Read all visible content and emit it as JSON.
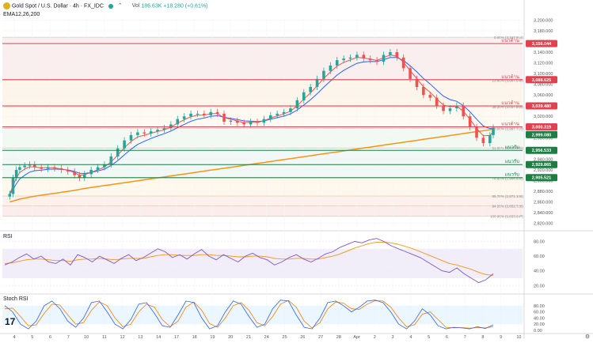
{
  "header": {
    "symbol_title": "Gold Spot / U.S. Dollar · 4h · FX_IDC",
    "volume_label": "Vol",
    "volume_value": "186.63K",
    "change_text": "+18.280 (+0.61%)",
    "indicator_label": "EMA12,26,200"
  },
  "colors": {
    "up": "#26a69a",
    "down": "#ef5350",
    "ema12": "#ef5350",
    "ema26": "#2962ff",
    "ema200": "#f7931a",
    "resistance": "#e0434f",
    "support": "#1e7d43",
    "rsi": "#7e57c2",
    "stoch_k": "#2962ff",
    "stoch_d": "#f57c00"
  },
  "chart_data": [
    {
      "type": "candlestick",
      "title": "Gold Spot / U.S. Dollar · 4h · FX_IDC",
      "x_tick_labels": [
        "4",
        "5",
        "6",
        "7",
        "10",
        "11",
        "12",
        "13",
        "14",
        "17",
        "18",
        "19",
        "20",
        "21",
        "24",
        "25",
        "26",
        "27",
        "28",
        "Apr",
        "2",
        "3",
        "4",
        "5",
        "6",
        "7",
        "8",
        "9",
        "10"
      ],
      "y_tick_labels": [
        "3,200.000",
        "3,180.000",
        "3,160.000",
        "3,140.000",
        "3,120.000",
        "3,100.000",
        "3,080.000",
        "3,060.000",
        "3,040.000",
        "3,020.000",
        "3,000.000",
        "2,980.000",
        "2,960.000",
        "2,940.000",
        "2,920.000",
        "2,900.000",
        "2,880.000",
        "2,860.000",
        "2,840.000",
        "2,820.000"
      ],
      "ylim": [
        2815,
        3205
      ],
      "approx_close_path": [
        [
          2870,
          2860
        ],
        [
          3,
          2875
        ],
        [
          5,
          2905
        ],
        [
          7,
          2920
        ],
        [
          9,
          2925
        ],
        [
          12,
          2928
        ],
        [
          15,
          2930
        ],
        [
          18,
          2925
        ],
        [
          22,
          2922
        ],
        [
          26,
          2925
        ],
        [
          30,
          2923
        ],
        [
          34,
          2920
        ],
        [
          38,
          2917
        ],
        [
          42,
          2910
        ],
        [
          45,
          2905
        ],
        [
          48,
          2912
        ],
        [
          52,
          2920
        ],
        [
          56,
          2925
        ],
        [
          60,
          2930
        ],
        [
          64,
          2945
        ],
        [
          68,
          2960
        ],
        [
          72,
          2975
        ],
        [
          76,
          2985
        ],
        [
          80,
          2990
        ],
        [
          84,
          2988
        ],
        [
          88,
          2992
        ],
        [
          92,
          2995
        ],
        [
          96,
          2998
        ],
        [
          100,
          3005
        ],
        [
          104,
          3015
        ],
        [
          108,
          3020
        ],
        [
          112,
          3025
        ],
        [
          116,
          3025
        ],
        [
          120,
          3022
        ],
        [
          124,
          3028
        ],
        [
          128,
          3025
        ],
        [
          132,
          3010
        ],
        [
          136,
          3012
        ],
        [
          140,
          3008
        ],
        [
          144,
          3005
        ],
        [
          148,
          3010
        ],
        [
          152,
          3008
        ],
        [
          156,
          3015
        ],
        [
          160,
          3022
        ],
        [
          164,
          3025
        ],
        [
          168,
          3028
        ],
        [
          172,
          3035
        ],
        [
          176,
          3050
        ],
        [
          180,
          3065
        ],
        [
          184,
          3075
        ],
        [
          188,
          3090
        ],
        [
          192,
          3105
        ],
        [
          196,
          3115
        ],
        [
          200,
          3125
        ],
        [
          204,
          3128
        ],
        [
          208,
          3130
        ],
        [
          212,
          3135
        ],
        [
          216,
          3128
        ],
        [
          220,
          3125
        ],
        [
          224,
          3122
        ],
        [
          228,
          3135
        ],
        [
          232,
          3140
        ],
        [
          236,
          3130
        ],
        [
          240,
          3110
        ],
        [
          244,
          3090
        ],
        [
          248,
          3075
        ],
        [
          252,
          3060
        ],
        [
          256,
          3055
        ],
        [
          260,
          3040
        ],
        [
          264,
          3030
        ],
        [
          268,
          3035
        ],
        [
          272,
          3040
        ],
        [
          276,
          3020
        ],
        [
          280,
          3000
        ],
        [
          284,
          2980
        ],
        [
          288,
          2970
        ],
        [
          292,
          2985
        ],
        [
          294,
          2999
        ]
      ],
      "horizontal_levels": [
        {
          "price": 3156.044,
          "label": "3,156.044",
          "tag": "แนวต้าน",
          "kind": "resistance"
        },
        {
          "price": 3088.625,
          "label": "3,088.625",
          "tag": "แนวต้าน",
          "kind": "resistance"
        },
        {
          "price": 3039.48,
          "label": "3,039.480",
          "tag": "แนวต้าน",
          "kind": "resistance"
        },
        {
          "price": 3000.319,
          "label": "3,000.319",
          "tag": "แนวต้าน",
          "kind": "resistance"
        },
        {
          "price": 2956.533,
          "label": "2,956.533",
          "tag": "แนวรับ",
          "kind": "support"
        },
        {
          "price": 2929.865,
          "label": "2,929.865",
          "tag": "แนวรับ",
          "kind": "support"
        },
        {
          "price": 2905.521,
          "label": "2,905.521",
          "tag": "แนวรับ",
          "kind": "support"
        }
      ],
      "current_price_label": "2,999.080",
      "fibonacci_levels": [
        {
          "ratio": "0.00%",
          "value": "(3,167.914)",
          "price": 3167.914
        },
        {
          "ratio": "23.60%",
          "value": "(3,087.548)",
          "price": 3087.548
        },
        {
          "ratio": "38.20%",
          "value": "(3,037.868)",
          "price": 3037.868
        },
        {
          "ratio": "50.00%",
          "value": "(2,997.713)",
          "price": 2997.713
        },
        {
          "ratio": "61.80%",
          "value": "(2,960.999)",
          "price": 2960.999
        },
        {
          "ratio": "78.60%",
          "value": "(2,904.695)",
          "price": 2904.695
        },
        {
          "ratio": "85.70%",
          "value": "(2,871.108)",
          "price": 2871.108
        },
        {
          "ratio": "94.20%",
          "value": "(2,852.728)",
          "price": 2852.728
        },
        {
          "ratio": "100.00%",
          "value": "(2,833.347)",
          "price": 2833.347
        }
      ]
    },
    {
      "type": "line",
      "title": "RSI",
      "ylim": [
        15,
        88
      ],
      "y_tick_labels": [
        "80.00",
        "60.00",
        "40.00",
        "20.00"
      ],
      "band": [
        30,
        70
      ],
      "series": [
        {
          "values": [
            48,
            52,
            58,
            63,
            56,
            60,
            52,
            50,
            56,
            48,
            62,
            58,
            52,
            60,
            55,
            50,
            57,
            62,
            54,
            58,
            64,
            70,
            66,
            58,
            62,
            56,
            63,
            69,
            60,
            55,
            62,
            57,
            52,
            60,
            64,
            58,
            55,
            48,
            52,
            58,
            62,
            56,
            52,
            57,
            63,
            66,
            72,
            76,
            80,
            78,
            82,
            84,
            80,
            74,
            70,
            66,
            62,
            58,
            52,
            46,
            40,
            38,
            44,
            36,
            30,
            24,
            28,
            36
          ]
        },
        {
          "values": [
            50,
            51,
            53,
            55,
            56,
            56,
            55,
            54,
            54,
            53,
            55,
            56,
            56,
            57,
            56,
            55,
            56,
            57,
            57,
            57,
            59,
            61,
            62,
            62,
            61,
            61,
            61,
            62,
            62,
            61,
            61,
            60,
            59,
            59,
            60,
            60,
            59,
            57,
            56,
            56,
            57,
            57,
            56,
            56,
            58,
            60,
            63,
            67,
            71,
            74,
            77,
            79,
            79,
            78,
            76,
            73,
            70,
            66,
            62,
            58,
            54,
            50,
            48,
            45,
            42,
            38,
            35,
            34
          ]
        }
      ]
    },
    {
      "type": "line",
      "title": "Stoch RSI",
      "ylim": [
        -5,
        105
      ],
      "y_tick_labels": [
        "80.00",
        "60.00",
        "40.00",
        "20.00",
        "0.00"
      ],
      "band": [
        20,
        80
      ],
      "series": [
        {
          "values": [
            80,
            60,
            20,
            5,
            30,
            80,
            95,
            70,
            30,
            10,
            40,
            90,
            95,
            60,
            20,
            5,
            35,
            85,
            90,
            55,
            15,
            10,
            50,
            95,
            90,
            40,
            5,
            15,
            60,
            95,
            85,
            45,
            10,
            20,
            70,
            98,
            95,
            50,
            10,
            5,
            40,
            90,
            95,
            80,
            60,
            75,
            95,
            98,
            90,
            60,
            20,
            5,
            30,
            70,
            50,
            15,
            5,
            10,
            8,
            5,
            12,
            6,
            18
          ]
        },
        {
          "values": [
            70,
            72,
            45,
            15,
            18,
            55,
            85,
            82,
            50,
            20,
            25,
            65,
            92,
            80,
            40,
            12,
            20,
            60,
            85,
            75,
            35,
            12,
            30,
            75,
            92,
            65,
            22,
            10,
            40,
            80,
            90,
            65,
            25,
            15,
            45,
            85,
            97,
            75,
            30,
            8,
            25,
            70,
            92,
            88,
            70,
            68,
            85,
            96,
            95,
            75,
            40,
            12,
            18,
            52,
            60,
            35,
            10,
            8,
            9,
            7,
            9,
            8,
            12
          ]
        }
      ]
    }
  ]
}
